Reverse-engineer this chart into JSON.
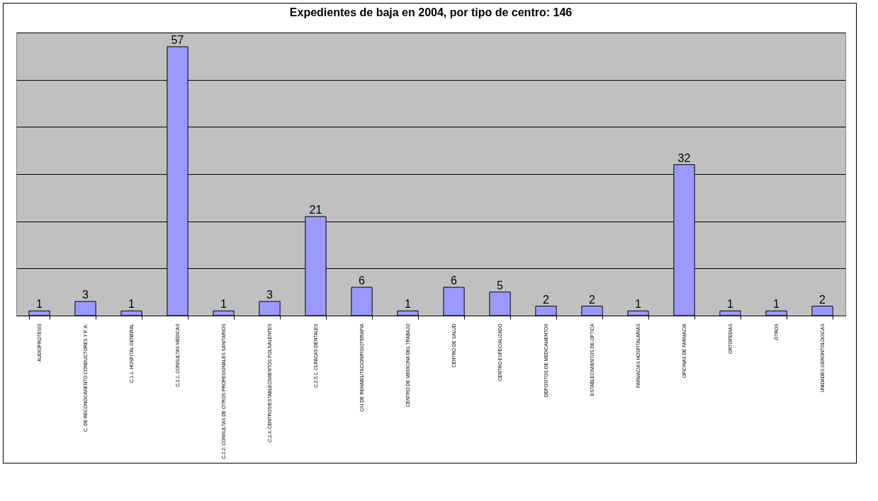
{
  "chart_data": {
    "type": "bar",
    "title": "Expedientes de baja en 2004, por tipo de centro: 146",
    "categories": [
      "AUDIOPROTESIS",
      "C. DE RECONOCIMIENTO CONDUCTORES Y P. A.",
      "C.1.1. HOSPITAL GENERAL",
      "C.2.1. CONSULTAS MÉDICAS",
      "C.2.2. CONSULTAS DE OTROS PROFESIONALES SANITARIOS",
      "C.2.4. CENTROS/ESTABLECIMIENTOS POLIVALENTES",
      "C.2.5.1. CLÍNICAS DENTALES",
      "C/U DE REHABILITACION/FISIOTERAPIA",
      "CENTRO DE MEDICINA DEL TRABAJO",
      "CENTRO DE  SALUD",
      "CENTRO ESPECIALIZADO",
      "DEPOSITOS DE MEDICAMENTOS",
      "ESTABLECIMIENTOS DE OPTICA",
      "FARMACIAS HOSPITALARIAS",
      "OFICINAS DE FARMACIA",
      "ORTOPEDIAS",
      "OTROS",
      "UNIDADES GERONTOLÓGICAS"
    ],
    "values": [
      1,
      3,
      1,
      57,
      1,
      3,
      21,
      6,
      1,
      6,
      5,
      2,
      2,
      1,
      32,
      1,
      1,
      2
    ],
    "color": "#9999ff",
    "ylim": [
      0,
      60
    ],
    "yticks": [
      {
        "value": 0,
        "label": null
      },
      {
        "value": 10,
        "label": null
      },
      {
        "value": 20,
        "label": null
      },
      {
        "value": 30,
        "label": null
      },
      {
        "value": 40,
        "label": null
      },
      {
        "value": 50,
        "label": null
      },
      {
        "value": 60,
        "label": null
      }
    ],
    "grid": "y",
    "tick_labels": "x",
    "data_labels": true
  }
}
